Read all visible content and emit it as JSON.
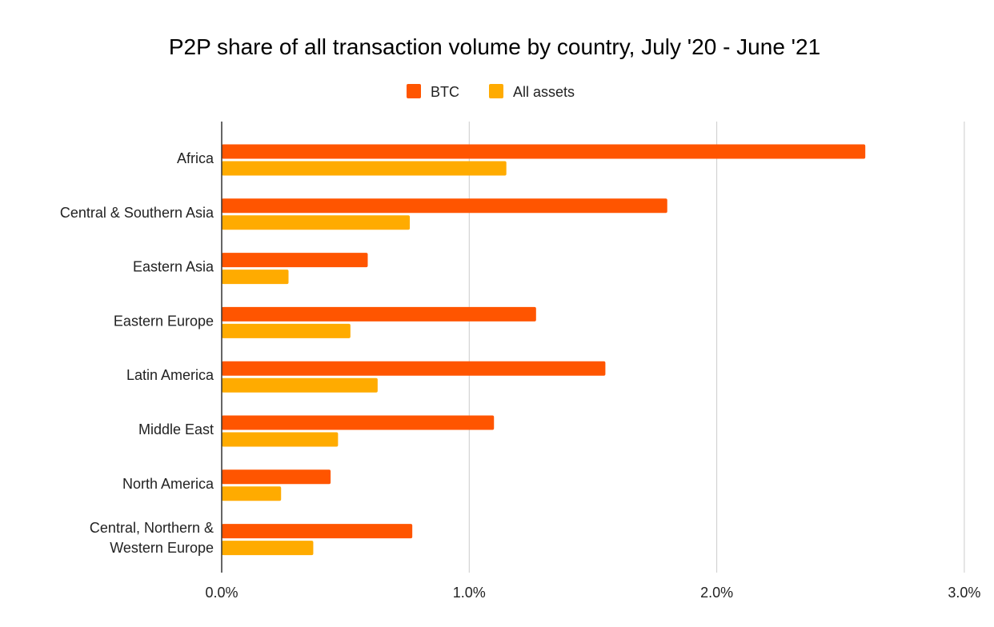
{
  "chart_data": {
    "type": "bar",
    "orientation": "horizontal",
    "title": "P2P share of all transaction volume by country, July '20 - June '21",
    "categories": [
      [
        "Africa"
      ],
      [
        "Central & Southern Asia"
      ],
      [
        "Eastern Asia"
      ],
      [
        "Eastern Europe"
      ],
      [
        "Latin America"
      ],
      [
        "Middle East"
      ],
      [
        "North America"
      ],
      [
        "Central, Northern &",
        "Western Europe"
      ]
    ],
    "series": [
      {
        "name": "BTC",
        "color": "#ff5500",
        "values": [
          2.6,
          1.8,
          0.59,
          1.27,
          1.55,
          1.1,
          0.44,
          0.77
        ]
      },
      {
        "name": "All assets",
        "color": "#ffab00",
        "values": [
          1.15,
          0.76,
          0.27,
          0.52,
          0.63,
          0.47,
          0.24,
          0.37
        ]
      }
    ],
    "xlim": [
      0,
      3
    ],
    "x_ticks": [
      0,
      1,
      2,
      3
    ],
    "x_tick_labels": [
      "0.0%",
      "1.0%",
      "2.0%",
      "3.0%"
    ],
    "grid": "vertical",
    "legend_position": "top"
  }
}
